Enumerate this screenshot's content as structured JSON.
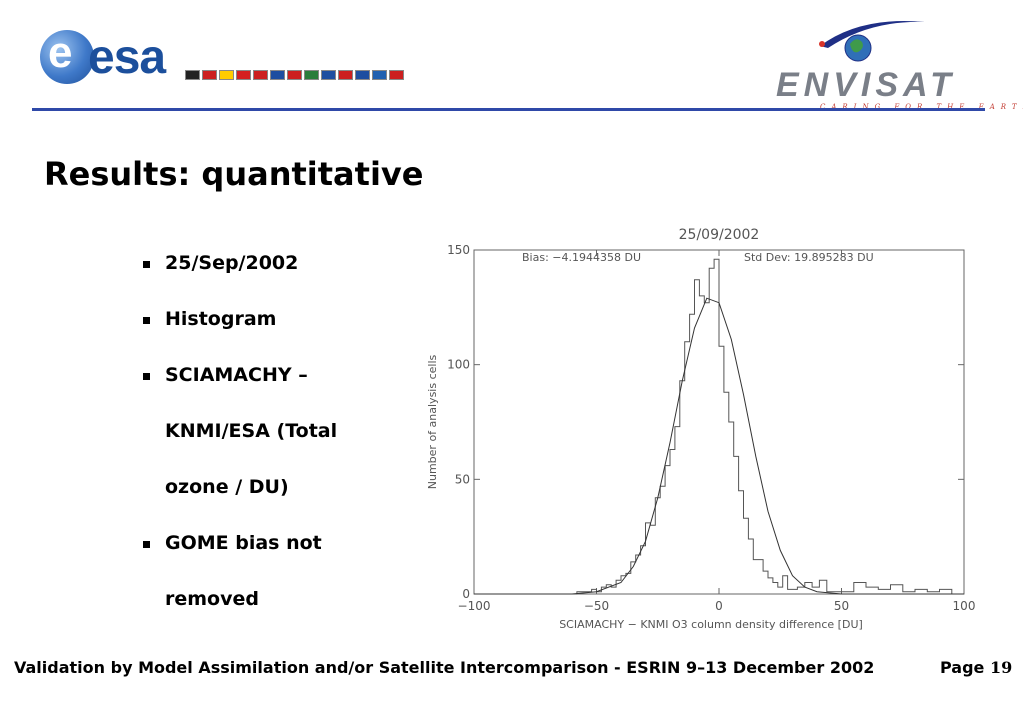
{
  "header": {
    "esa_logo_text": "esa",
    "envisat_logo_text": "ENVISAT",
    "envisat_tagline": "CARING FOR THE EARTH",
    "flag_colors": [
      "#222222",
      "#cc1f1f",
      "#ffcc00",
      "#d42020",
      "#cc1f1f",
      "#1d4ea0",
      "#cc1f1f",
      "#2a7d3c",
      "#1d4ea0",
      "#cc1f1f",
      "#1d4ea0",
      "#2060b0",
      "#cc1f1f"
    ]
  },
  "title": "Results: quantitative",
  "bullets": [
    "25/Sep/2002",
    "Histogram",
    "SCIAMACHY –",
    "KNMI/ESA (Total",
    "ozone / DU)",
    "GOME bias not",
    "removed"
  ],
  "chart_data": {
    "type": "line",
    "title": "25/09/2002",
    "annotations": [
      "Bias: −4.1944358 DU",
      "Std Dev: 19.895283 DU"
    ],
    "xlabel": "SCIAMACHY − KNMI O3 column density difference [DU]",
    "ylabel": "Number of analysis cells",
    "xlim": [
      -100,
      100
    ],
    "ylim": [
      0,
      150
    ],
    "xticks": [
      -100,
      -50,
      0,
      50,
      100
    ],
    "xtick_labels": [
      "−100",
      "−50",
      "0",
      "50",
      "100"
    ],
    "yticks": [
      0,
      50,
      100,
      150
    ],
    "series": [
      {
        "style": "histogram",
        "x": [
          -100,
          -90,
          -80,
          -70,
          -62,
          -58,
          -55,
          -52,
          -50,
          -48,
          -46,
          -44,
          -42,
          -40,
          -38,
          -36,
          -34,
          -32,
          -30,
          -28,
          -26,
          -24,
          -22,
          -20,
          -18,
          -16,
          -14,
          -12,
          -10,
          -8,
          -6,
          -4,
          -2,
          0,
          2,
          4,
          6,
          8,
          10,
          12,
          14,
          16,
          18,
          20,
          22,
          24,
          26,
          28,
          30,
          32,
          35,
          38,
          41,
          44,
          47,
          50,
          55,
          60,
          65,
          70,
          75,
          80,
          85,
          90,
          95,
          100
        ],
        "y": [
          0,
          0,
          0,
          0,
          0,
          1,
          1,
          2,
          1,
          3,
          4,
          3,
          6,
          8,
          9,
          14,
          17,
          21,
          31,
          30,
          42,
          47,
          56,
          63,
          73,
          93,
          110,
          122,
          137,
          130,
          127,
          142,
          146,
          108,
          88,
          75,
          60,
          45,
          33,
          24,
          15,
          15,
          10,
          7,
          5,
          3,
          8,
          2,
          2,
          3,
          5,
          3,
          6,
          1,
          1,
          1,
          5,
          3,
          2,
          4,
          1,
          2,
          1,
          2,
          0,
          0
        ]
      },
      {
        "style": "gaussian-fit",
        "x": [
          -100,
          -80,
          -60,
          -50,
          -40,
          -35,
          -30,
          -25,
          -20,
          -15,
          -10,
          -5,
          0,
          5,
          10,
          15,
          20,
          25,
          30,
          35,
          40,
          50,
          60,
          80,
          100
        ],
        "y": [
          0,
          0,
          0,
          1,
          5,
          12,
          23,
          42,
          66,
          93,
          116,
          129,
          127,
          111,
          87,
          60,
          36,
          19,
          8,
          3,
          1,
          0,
          0,
          0,
          0
        ]
      }
    ]
  },
  "footer": {
    "text": "Validation by Model Assimilation and/or Satellite Intercomparison - ESRIN 9–13 December 2002",
    "page_label": "Page",
    "page_number": "19"
  }
}
